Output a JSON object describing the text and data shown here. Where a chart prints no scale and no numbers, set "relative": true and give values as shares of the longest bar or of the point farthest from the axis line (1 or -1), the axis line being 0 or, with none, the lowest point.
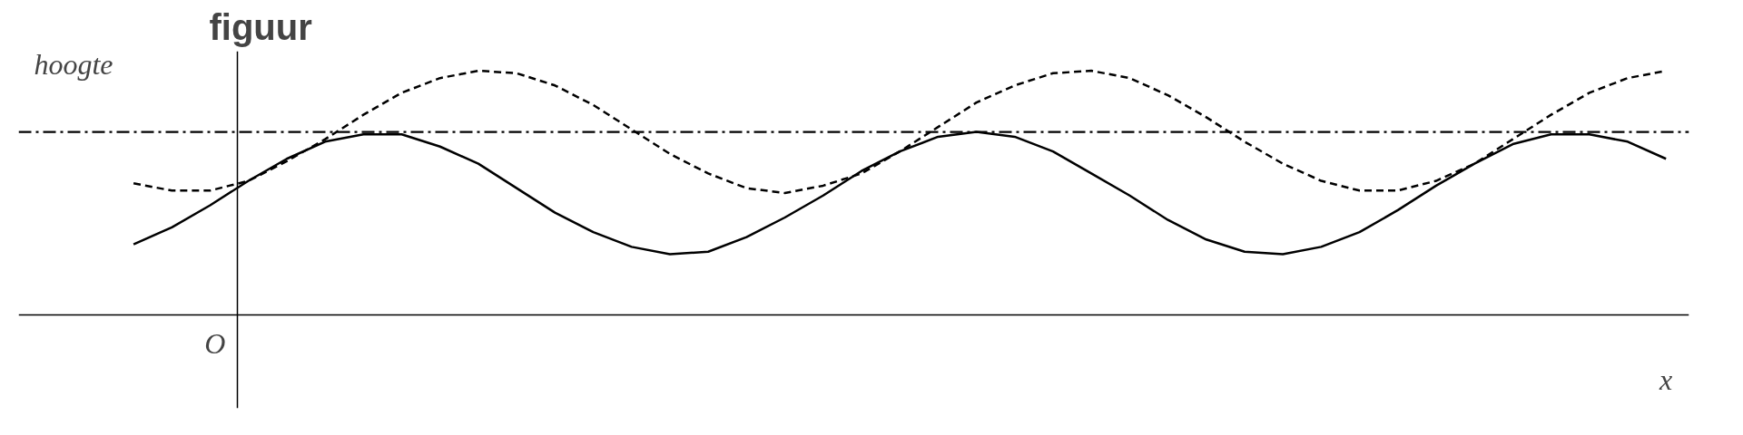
{
  "chart_data": {
    "type": "line",
    "title": "figuur",
    "xlabel": "x",
    "ylabel": "hoogte",
    "relative": true,
    "grid": false,
    "annotations": [
      "O"
    ],
    "categories": [
      null,
      null,
      null,
      null,
      null,
      null,
      null,
      null,
      null,
      null,
      null,
      null,
      null,
      null,
      null,
      null,
      null,
      null,
      null,
      null,
      null,
      null,
      null,
      null,
      null,
      null,
      null,
      null,
      null,
      null,
      null,
      null,
      null,
      null,
      null,
      null,
      null,
      null,
      null,
      null,
      null
    ],
    "series": [
      {
        "color": "#000000",
        "line_style": "solid",
        "values": [
          0.29,
          0.36,
          0.45,
          0.55,
          0.64,
          0.71,
          0.74,
          0.74,
          0.69,
          0.62,
          0.52,
          0.42,
          0.34,
          0.28,
          0.25,
          0.26,
          0.32,
          0.4,
          0.49,
          0.59,
          0.67,
          0.73,
          0.75,
          0.73,
          0.67,
          0.58,
          0.49,
          0.39,
          0.31,
          0.26,
          0.25,
          0.28,
          0.34,
          0.43,
          0.53,
          0.62,
          0.7,
          0.74,
          0.74,
          0.71,
          0.64
        ]
      },
      {
        "color": "#000000",
        "line_style": "dashed",
        "values": [
          0.54,
          0.51,
          0.51,
          0.55,
          0.63,
          0.72,
          0.82,
          0.91,
          0.97,
          1.0,
          0.99,
          0.94,
          0.86,
          0.76,
          0.66,
          0.58,
          0.52,
          0.5,
          0.53,
          0.58,
          0.67,
          0.77,
          0.87,
          0.94,
          0.99,
          1.0,
          0.97,
          0.9,
          0.81,
          0.71,
          0.62,
          0.55,
          0.51,
          0.51,
          0.55,
          0.62,
          0.72,
          0.82,
          0.91,
          0.97,
          1.0
        ]
      }
    ],
    "ref_lines": [
      {
        "axis": "y",
        "value": 0.75,
        "color": "#000000",
        "line_style": "dashdot"
      }
    ]
  }
}
